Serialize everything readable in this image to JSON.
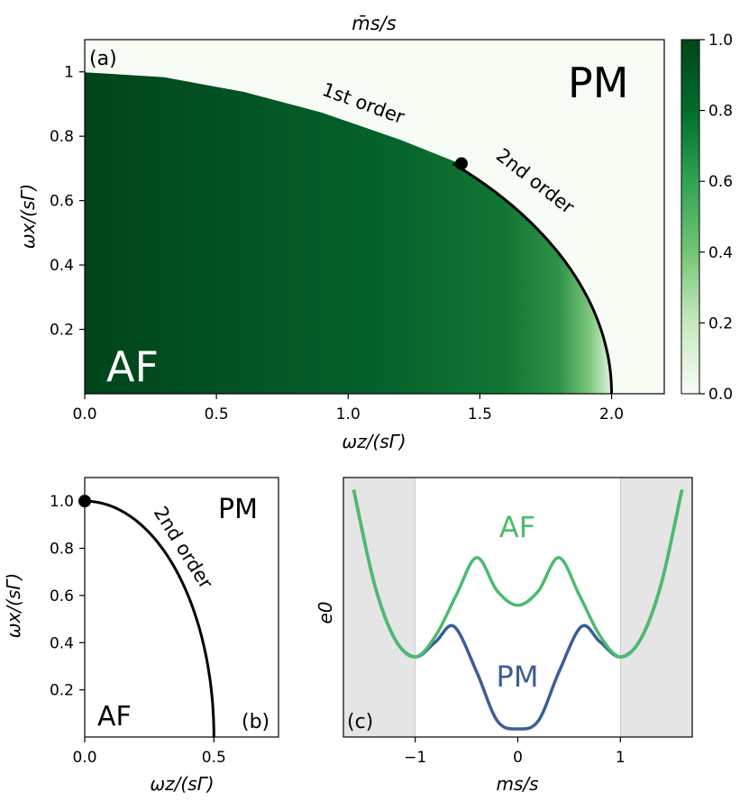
{
  "chart_data": [
    {
      "id": "a",
      "type": "heatmap",
      "panel_label": "(a)",
      "title": "m̄s/s",
      "xlabel": "ωz/(sΓ)",
      "ylabel": "ωx/(sΓ)",
      "xlim": [
        0,
        2.2
      ],
      "ylim": [
        0,
        1.1
      ],
      "xticks": [
        0.0,
        0.5,
        1.0,
        1.5,
        2.0
      ],
      "xtick_labels": [
        "0.0",
        "0.5",
        "1.0",
        "1.5",
        "2.0"
      ],
      "yticks": [
        0.2,
        0.4,
        0.6,
        0.8,
        1.0
      ],
      "ytick_labels": [
        "0.2",
        "0.4",
        "0.6",
        "0.8",
        "1"
      ],
      "colorbar": {
        "range": [
          0,
          1
        ],
        "ticks": [
          0.0,
          0.2,
          0.4,
          0.6,
          0.8,
          1.0
        ],
        "tick_labels": [
          "0.0",
          "0.2",
          "0.4",
          "0.6",
          "0.8",
          "1.0"
        ],
        "color_low": "#f7fcf5",
        "color_mid": "#1d7d36",
        "color_high": "#00441b"
      },
      "region_labels": [
        "AF",
        "PM"
      ],
      "first_order_boundary": {
        "label": "1st order",
        "points": [
          [
            0.0,
            1.0
          ],
          [
            0.3,
            0.985
          ],
          [
            0.6,
            0.94
          ],
          [
            0.9,
            0.875
          ],
          [
            1.2,
            0.79
          ],
          [
            1.43,
            0.715
          ]
        ]
      },
      "second_order_boundary": {
        "label": "2nd order",
        "shape": "ellipse ωz²/4 + ωx² = 1",
        "from": [
          1.43,
          0.715
        ],
        "to": [
          2.0,
          0.0
        ]
      },
      "tricritical_point": [
        1.43,
        0.715
      ]
    },
    {
      "id": "b",
      "type": "line",
      "panel_label": "(b)",
      "xlabel": "ωz/(sΓ)",
      "ylabel": "ωx/(sΓ)",
      "xlim": [
        0,
        0.75
      ],
      "ylim": [
        0,
        1.1
      ],
      "xticks": [
        0.0,
        0.5
      ],
      "xtick_labels": [
        "0.0",
        "0.5"
      ],
      "yticks": [
        0.2,
        0.4,
        0.6,
        0.8,
        1.0
      ],
      "ytick_labels": [
        "0.2",
        "0.4",
        "0.6",
        "0.8",
        "1.0"
      ],
      "region_labels": [
        "AF",
        "PM"
      ],
      "boundary": {
        "label": "2nd order",
        "shape": "ellipse (2ωz)² + ωx² = 1",
        "from": [
          0.0,
          1.0
        ],
        "to": [
          0.5,
          0.0
        ]
      },
      "point": [
        0.0,
        1.0
      ]
    },
    {
      "id": "c",
      "type": "line",
      "panel_label": "(c)",
      "xlabel": "ms/s",
      "ylabel": "e0",
      "xlim": [
        -1.7,
        1.7
      ],
      "xticks": [
        -1,
        0,
        1
      ],
      "xtick_labels": [
        "−1",
        "0",
        "1"
      ],
      "shaded_regions": [
        [
          -1.7,
          -1.0
        ],
        [
          1.0,
          1.7
        ]
      ],
      "shade_color": "#e5e5e5",
      "series": [
        {
          "name": "AF",
          "color": "#4cbb6e",
          "x": [
            -1.6,
            -1.4,
            -1.2,
            -1.0,
            -0.8,
            -0.6,
            -0.4,
            -0.2,
            0.0,
            0.2,
            0.4,
            0.6,
            0.8,
            1.0,
            1.2,
            1.4,
            1.6
          ],
          "y": [
            9.2,
            4.6,
            1.85,
            0.95,
            2.0,
            4.0,
            5.85,
            4.2,
            3.5,
            4.2,
            5.85,
            4.0,
            2.0,
            0.95,
            1.85,
            4.6,
            9.2
          ]
        },
        {
          "name": "PM",
          "color": "#3b5e95",
          "x": [
            -1.6,
            -1.4,
            -1.2,
            -1.0,
            -0.8,
            -0.62,
            -0.4,
            -0.2,
            0.0,
            0.2,
            0.4,
            0.62,
            0.8,
            1.0,
            1.2,
            1.4,
            1.6
          ],
          "y": [
            9.2,
            4.6,
            1.85,
            0.95,
            1.7,
            2.45,
            0.2,
            -2.2,
            -2.6,
            -2.2,
            0.2,
            2.45,
            1.7,
            0.95,
            1.85,
            4.6,
            9.2
          ]
        }
      ]
    }
  ]
}
